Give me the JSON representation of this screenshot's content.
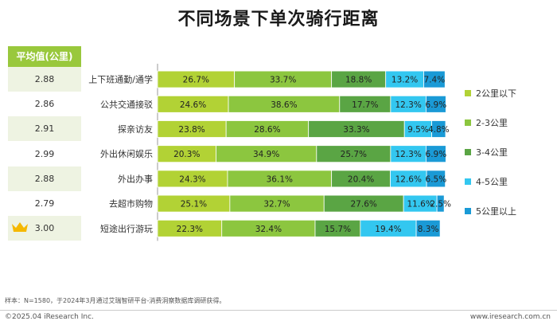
{
  "title": "不同场景下单次骑行距离",
  "avg_table": {
    "header": "平均值(公里)",
    "values": [
      "2.88",
      "2.86",
      "2.91",
      "2.99",
      "2.88",
      "2.79",
      "3.00"
    ]
  },
  "colors": {
    "header_bg": "#99c83c",
    "row_bg_alt": "#eef3e2",
    "row_bg": "#ffffff",
    "crown": "#f5b800"
  },
  "chart_data": {
    "type": "bar",
    "orientation": "horizontal",
    "stacked": true,
    "percent": true,
    "categories": [
      "上下班通勤/通学",
      "公共交通接驳",
      "探亲访友",
      "外出休闲娱乐",
      "外出办事",
      "去超市购物",
      "短途出行游玩"
    ],
    "series": [
      {
        "name": "2公里以下",
        "color": "#b2d235",
        "values": [
          26.7,
          24.6,
          23.8,
          20.3,
          24.3,
          25.1,
          22.3
        ]
      },
      {
        "name": "2-3公里",
        "color": "#8cc63f",
        "values": [
          33.7,
          38.6,
          28.6,
          34.9,
          36.1,
          32.7,
          32.4
        ]
      },
      {
        "name": "3-4公里",
        "color": "#5aa544",
        "values": [
          18.8,
          17.7,
          33.3,
          25.7,
          20.4,
          27.6,
          15.7
        ]
      },
      {
        "name": "4-5公里",
        "color": "#33c7f0",
        "values": [
          13.2,
          12.3,
          9.5,
          12.3,
          12.6,
          11.6,
          19.4
        ]
      },
      {
        "name": "5公里以上",
        "color": "#1a9ad6",
        "values": [
          7.4,
          6.9,
          4.8,
          6.9,
          6.5,
          2.5,
          8.3
        ]
      }
    ],
    "value_labels": [
      [
        "26.7%",
        "33.7%",
        "18.8%",
        "13.2%",
        "7.4%"
      ],
      [
        "24.6%",
        "38.6%",
        "17.7%",
        "12.3%",
        "6.9%"
      ],
      [
        "23.8%",
        "28.6%",
        "33.3%",
        "9.5%",
        "4.8%"
      ],
      [
        "20.3%",
        "34.9%",
        "25.7%",
        "12.3%",
        "6.9%"
      ],
      [
        "24.3%",
        "36.1%",
        "20.4%",
        "12.6%",
        "6.5%"
      ],
      [
        "25.1%",
        "32.7%",
        "27.6%",
        "11.6%",
        "2.5%"
      ],
      [
        "22.3%",
        "32.4%",
        "15.7%",
        "19.4%",
        "8.3%"
      ]
    ],
    "xlim": [
      0,
      100
    ],
    "legend_position": "right"
  },
  "footnote": "样本：N=1580，于2024年3月通过艾瑞智研平台-消费洞察数据库调研获得。",
  "footer": {
    "copyright": "©2025.04 iResearch Inc.",
    "site": "www.iresearch.com.cn"
  }
}
